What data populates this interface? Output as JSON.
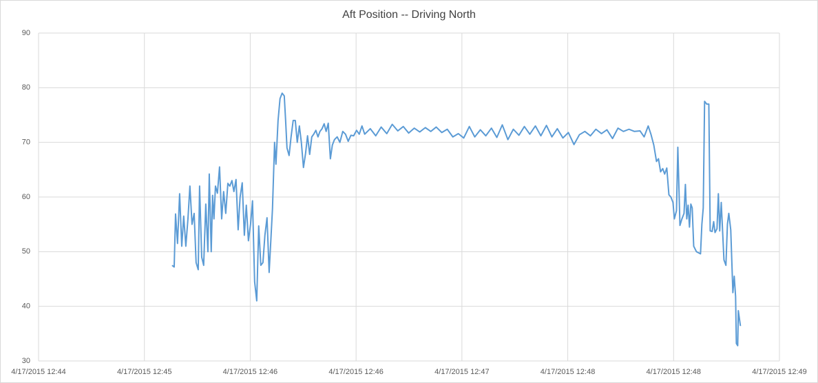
{
  "chart_data": {
    "type": "line",
    "title": "Aft Position -- Driving North",
    "x": [
      45.083,
      45.097,
      45.106,
      45.119,
      45.133,
      45.147,
      45.16,
      45.174,
      45.188,
      45.201,
      45.215,
      45.229,
      45.242,
      45.256,
      45.265,
      45.279,
      45.292,
      45.306,
      45.32,
      45.329,
      45.342,
      45.351,
      45.36,
      45.37,
      45.383,
      45.397,
      45.411,
      45.424,
      45.438,
      45.452,
      45.465,
      45.479,
      45.492,
      45.506,
      45.52,
      45.533,
      45.547,
      45.561,
      45.574,
      45.588,
      45.602,
      45.615,
      45.629,
      45.643,
      45.656,
      45.67,
      45.684,
      45.697,
      45.711,
      45.725,
      45.738,
      45.747,
      45.761,
      45.77,
      45.784,
      45.797,
      45.811,
      45.825,
      45.834,
      45.843,
      45.857,
      45.87,
      45.884,
      45.898,
      45.911,
      45.925,
      45.938,
      45.952,
      45.966,
      45.979,
      45.993,
      46.007,
      46.02,
      46.034,
      46.048,
      46.061,
      46.075,
      46.089,
      46.102,
      46.116,
      46.13,
      46.143,
      46.157,
      46.175,
      46.193,
      46.212,
      46.23,
      46.248,
      46.266,
      46.284,
      46.303,
      46.321,
      46.339,
      46.357,
      46.394,
      46.43,
      46.466,
      46.503,
      46.539,
      46.576,
      46.612,
      46.648,
      46.685,
      46.721,
      46.758,
      46.794,
      46.83,
      46.867,
      46.903,
      46.94,
      46.976,
      47.012,
      47.049,
      47.085,
      47.122,
      47.158,
      47.195,
      47.231,
      47.267,
      47.304,
      47.34,
      47.377,
      47.413,
      47.449,
      47.486,
      47.522,
      47.559,
      47.595,
      47.631,
      47.668,
      47.704,
      47.741,
      47.777,
      47.813,
      47.85,
      47.886,
      47.923,
      47.959,
      47.996,
      48.032,
      48.068,
      48.105,
      48.141,
      48.178,
      48.205,
      48.232,
      48.25,
      48.269,
      48.287,
      48.3,
      48.314,
      48.328,
      48.341,
      48.355,
      48.369,
      48.382,
      48.396,
      48.405,
      48.419,
      48.428,
      48.442,
      48.455,
      48.469,
      48.478,
      48.487,
      48.496,
      48.505,
      48.514,
      48.523,
      48.533,
      48.551,
      48.578,
      48.587,
      48.596,
      48.605,
      48.619,
      48.633,
      48.642,
      48.655,
      48.665,
      48.674,
      48.687,
      48.696,
      48.705,
      48.715,
      48.724,
      48.733,
      48.746,
      48.756,
      48.765,
      48.778,
      48.792,
      48.801,
      48.81,
      48.815,
      48.824,
      48.828,
      48.842
    ],
    "values": [
      47.5,
      47.2,
      56.9,
      51.5,
      60.6,
      51,
      56.5,
      51,
      56,
      62,
      55,
      57,
      48,
      46.7,
      62,
      49,
      47.5,
      58.7,
      50,
      64.2,
      50,
      60.3,
      56,
      62,
      60.7,
      65.5,
      56,
      61,
      57,
      62.5,
      62,
      63,
      61,
      63.2,
      54,
      60,
      62.6,
      53,
      58.5,
      52,
      55,
      59.3,
      44.5,
      41,
      54.7,
      47.5,
      48,
      53,
      56.2,
      46.2,
      53,
      57.8,
      70,
      66,
      74,
      78,
      79,
      78.5,
      74,
      69,
      67.6,
      71,
      74,
      74,
      70,
      73,
      70,
      65.4,
      68,
      71.2,
      67.8,
      71,
      71.5,
      72.2,
      71,
      72,
      72.5,
      73.4,
      72,
      73.5,
      67,
      69.5,
      70.5,
      71,
      70,
      72,
      71.5,
      70.2,
      71.3,
      71.2,
      72.2,
      71.5,
      73,
      71.5,
      72.5,
      71.2,
      72.8,
      71.6,
      73.3,
      72.1,
      72.9,
      71.7,
      72.6,
      71.9,
      72.7,
      72.0,
      72.8,
      71.8,
      72.4,
      71.0,
      71.6,
      70.8,
      72.9,
      71.0,
      72.3,
      71.2,
      72.6,
      70.9,
      73.2,
      70.5,
      72.4,
      71.3,
      72.9,
      71.5,
      73.0,
      71.2,
      73.1,
      71.0,
      72.5,
      70.8,
      71.8,
      69.6,
      71.4,
      72.0,
      71.2,
      72.4,
      71.6,
      72.3,
      70.7,
      72.6,
      72.0,
      72.4,
      72.0,
      72.1,
      71.0,
      73.0,
      71.5,
      69.5,
      66.5,
      67,
      64.6,
      65.2,
      64.2,
      65.3,
      60.4,
      60,
      59,
      56,
      57.5,
      69.1,
      54.8,
      56,
      57,
      62.3,
      56,
      58.5,
      54.5,
      58.7,
      58,
      51,
      50,
      49.6,
      55,
      58,
      77.5,
      77,
      77,
      53.8,
      53.7,
      55.5,
      53.5,
      54.2,
      60.6,
      53.8,
      59,
      53.8,
      48.5,
      47.5,
      55,
      57,
      54,
      42.5,
      45.5,
      41.8,
      33.2,
      32.8,
      39.2,
      36.4
    ],
    "color": "#5b9bd5",
    "xlim": [
      44.2,
      49.1
    ],
    "xticks": [
      {
        "value": 44.2,
        "label": "4/17/2015 12:44"
      },
      {
        "value": 44.9,
        "label": "4/17/2015 12:45"
      },
      {
        "value": 45.6,
        "label": "4/17/2015 12:46"
      },
      {
        "value": 46.3,
        "label": "4/17/2015 12:46"
      },
      {
        "value": 47.0,
        "label": "4/17/2015 12:47"
      },
      {
        "value": 47.7,
        "label": "4/17/2015 12:48"
      },
      {
        "value": 48.4,
        "label": "4/17/2015 12:48"
      },
      {
        "value": 49.1,
        "label": "4/17/2015 12:49"
      }
    ],
    "ylim": [
      30,
      90
    ],
    "yticks": [
      30,
      40,
      50,
      60,
      70,
      80,
      90
    ],
    "grid": true
  }
}
